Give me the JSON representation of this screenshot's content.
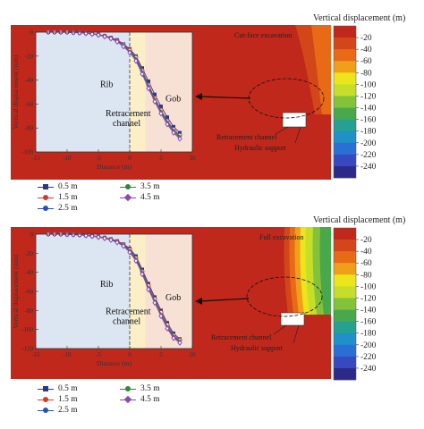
{
  "chart_data": [
    {
      "type": "line",
      "colorbar": {
        "title": "Vertical displacement (m)",
        "labels": [
          "-20",
          "-40",
          "-60",
          "-80",
          "-100",
          "-120",
          "-140",
          "-160",
          "-180",
          "-200",
          "-220",
          "-240"
        ],
        "colors": [
          "#c0281c",
          "#d2461a",
          "#e86a16",
          "#f0a018",
          "#ece51c",
          "#c6de2a",
          "#84c23c",
          "#4aa84c",
          "#26a090",
          "#2090c8",
          "#2a70d4",
          "#3848c0",
          "#2c2a88"
        ]
      },
      "xlabel": "Distance (m)",
      "ylabel": "Vertical displacement (mm)",
      "xlim": [
        -15,
        10
      ],
      "ylim": [
        -100,
        0
      ],
      "xticks": [
        "-15",
        "-10",
        "-5",
        "0",
        "5",
        "10"
      ],
      "yticks": [
        "0",
        "-20",
        "-40",
        "-60",
        "-80",
        "-100"
      ],
      "regions": {
        "rib": "Rib",
        "channel": "Retracement\nchannel",
        "gob": "Gob"
      },
      "annotations": {
        "excavation": "Cut-face excavation",
        "channel": "Retracement channel",
        "support": "Hydraulic support"
      },
      "x": [
        -13,
        -12,
        -11,
        -10,
        -9,
        -8,
        -7,
        -6,
        -5,
        -4,
        -3,
        -2,
        -1,
        0,
        1,
        2,
        3,
        4,
        5,
        6,
        7,
        8
      ],
      "series": [
        {
          "name": "0.5 m",
          "color": "#2a3a8a",
          "marker": "square",
          "values": [
            0,
            0,
            0,
            0,
            -0.2,
            -0.4,
            -0.7,
            -1.2,
            -1.9,
            -3,
            -4.5,
            -6.5,
            -10,
            -14,
            -20,
            -30,
            -41,
            -52,
            -62,
            -71,
            -79,
            -84
          ]
        },
        {
          "name": "1.5 m",
          "color": "#d23a2a",
          "marker": "circle",
          "values": [
            0,
            0,
            0,
            0,
            -0.2,
            -0.4,
            -0.8,
            -1.3,
            -2,
            -3.2,
            -4.8,
            -7,
            -10.5,
            -15,
            -21,
            -32,
            -44,
            -55,
            -65,
            -74,
            -81,
            -86
          ]
        },
        {
          "name": "2.5 m",
          "color": "#2a50b4",
          "marker": "triangle",
          "values": [
            0,
            0,
            0,
            0,
            -0.3,
            -0.5,
            -0.9,
            -1.4,
            -2.2,
            -3.4,
            -5,
            -7.3,
            -11,
            -16,
            -22,
            -33,
            -45,
            -56,
            -66,
            -75,
            -82,
            -87
          ]
        },
        {
          "name": "3.5 m",
          "color": "#2a8a3a",
          "marker": "triangle-down",
          "values": [
            0,
            0,
            0,
            0,
            -0.3,
            -0.5,
            -0.9,
            -1.5,
            -2.3,
            -3.5,
            -5.2,
            -7.6,
            -11.5,
            -16.5,
            -23,
            -34,
            -46,
            -57,
            -67,
            -76,
            -83,
            -88
          ]
        },
        {
          "name": "4.5 m",
          "color": "#8a4ab4",
          "marker": "diamond",
          "values": [
            0,
            0,
            0,
            0,
            -0.3,
            -0.6,
            -1,
            -1.6,
            -2.4,
            -3.7,
            -5.4,
            -8,
            -12,
            -17,
            -24,
            -35,
            -47,
            -58,
            -68,
            -77,
            -84,
            -89
          ]
        }
      ]
    },
    {
      "type": "line",
      "colorbar": {
        "title": "Vertical displacement (m)",
        "labels": [
          "-20",
          "-40",
          "-60",
          "-80",
          "-100",
          "-120",
          "-140",
          "-160",
          "-180",
          "-200",
          "-220",
          "-240"
        ],
        "colors": [
          "#c0281c",
          "#d2461a",
          "#e86a16",
          "#f0a018",
          "#ece51c",
          "#c6de2a",
          "#84c23c",
          "#4aa84c",
          "#26a090",
          "#2090c8",
          "#2a70d4",
          "#3848c0",
          "#2c2a88"
        ]
      },
      "xlabel": "Distance (m)",
      "ylabel": "Vertical displacement (mm)",
      "xlim": [
        -15,
        10
      ],
      "ylim": [
        -120,
        0
      ],
      "xticks": [
        "-15",
        "-10",
        "-5",
        "0",
        "5",
        "10"
      ],
      "yticks": [
        "0",
        "-20",
        "-40",
        "-60",
        "-80",
        "-100",
        "-120"
      ],
      "regions": {
        "rib": "Rib",
        "channel": "Retracement\nchannel",
        "gob": "Gob"
      },
      "annotations": {
        "excavation": "Full excavation",
        "channel": "Retracement channel",
        "support": "Hydraulic support"
      },
      "x": [
        -13,
        -12,
        -11,
        -10,
        -9,
        -8,
        -7,
        -6,
        -5,
        -4,
        -3,
        -2,
        -1,
        0,
        1,
        2,
        3,
        4,
        5,
        6,
        7,
        8
      ],
      "series": [
        {
          "name": "0.5 m",
          "color": "#2a3a8a",
          "marker": "square",
          "values": [
            0,
            0,
            0,
            -0.2,
            -0.4,
            -0.7,
            -1.1,
            -1.7,
            -2.5,
            -3.6,
            -5.1,
            -7.2,
            -10.5,
            -15,
            -23,
            -37,
            -52,
            -66,
            -80,
            -93,
            -104,
            -110
          ]
        },
        {
          "name": "1.5 m",
          "color": "#d23a2a",
          "marker": "circle",
          "values": [
            0,
            0,
            0,
            -0.2,
            -0.4,
            -0.7,
            -1.2,
            -1.8,
            -2.7,
            -3.8,
            -5.4,
            -7.6,
            -11,
            -16,
            -25,
            -39,
            -54,
            -68,
            -82,
            -95,
            -106,
            -111
          ]
        },
        {
          "name": "2.5 m",
          "color": "#2a50b4",
          "marker": "triangle",
          "values": [
            0,
            0,
            0,
            -0.2,
            -0.5,
            -0.8,
            -1.3,
            -2,
            -2.9,
            -4,
            -5.7,
            -8,
            -11.5,
            -17,
            -26,
            -40,
            -56,
            -70,
            -84,
            -97,
            -107,
            -112
          ]
        },
        {
          "name": "3.5 m",
          "color": "#2a8a3a",
          "marker": "triangle-down",
          "values": [
            0,
            0,
            0,
            -0.2,
            -0.5,
            -0.8,
            -1.4,
            -2.1,
            -3,
            -4.2,
            -6,
            -8.4,
            -12,
            -18,
            -27,
            -41,
            -57,
            -71,
            -85,
            -98,
            -108,
            -113
          ]
        },
        {
          "name": "4.5 m",
          "color": "#8a4ab4",
          "marker": "diamond",
          "values": [
            0,
            0,
            0,
            -0.3,
            -0.5,
            -0.9,
            -1.5,
            -2.2,
            -3.1,
            -4.4,
            -6.2,
            -8.7,
            -12.5,
            -19,
            -28,
            -42,
            -58,
            -72,
            -86,
            -99,
            -109,
            -114
          ]
        }
      ]
    }
  ]
}
